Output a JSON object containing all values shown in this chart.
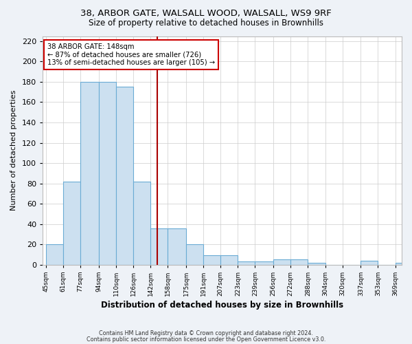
{
  "title_line1": "38, ARBOR GATE, WALSALL WOOD, WALSALL, WS9 9RF",
  "title_line2": "Size of property relative to detached houses in Brownhills",
  "xlabel": "Distribution of detached houses by size in Brownhills",
  "ylabel": "Number of detached properties",
  "bar_edges": [
    45,
    61,
    77,
    94,
    110,
    126,
    142,
    158,
    175,
    191,
    207,
    223,
    239,
    256,
    272,
    288,
    304,
    320,
    337,
    353,
    369
  ],
  "bar_heights": [
    20,
    82,
    180,
    180,
    175,
    82,
    36,
    36,
    20,
    9,
    9,
    3,
    3,
    5,
    5,
    2,
    0,
    0,
    4,
    0,
    2
  ],
  "bar_color": "#cce0f0",
  "bar_edge_color": "#6aabd4",
  "property_size": 148,
  "vline_color": "#aa0000",
  "annotation_title": "38 ARBOR GATE: 148sqm",
  "annotation_line1": "← 87% of detached houses are smaller (726)",
  "annotation_line2": "13% of semi-detached houses are larger (105) →",
  "annotation_box_color": "#ffffff",
  "annotation_box_edge": "#cc0000",
  "ylim": [
    0,
    225
  ],
  "yticks": [
    0,
    20,
    40,
    60,
    80,
    100,
    120,
    140,
    160,
    180,
    200,
    220
  ],
  "tick_labels": [
    "45sqm",
    "61sqm",
    "77sqm",
    "94sqm",
    "110sqm",
    "126sqm",
    "142sqm",
    "158sqm",
    "175sqm",
    "191sqm",
    "207sqm",
    "223sqm",
    "239sqm",
    "256sqm",
    "272sqm",
    "288sqm",
    "304sqm",
    "320sqm",
    "337sqm",
    "353sqm",
    "369sqm"
  ],
  "footer_line1": "Contains HM Land Registry data © Crown copyright and database right 2024.",
  "footer_line2": "Contains public sector information licensed under the Open Government Licence v3.0.",
  "fig_bg_color": "#eef2f7",
  "plot_bg_color": "#ffffff",
  "grid_color": "#cccccc"
}
